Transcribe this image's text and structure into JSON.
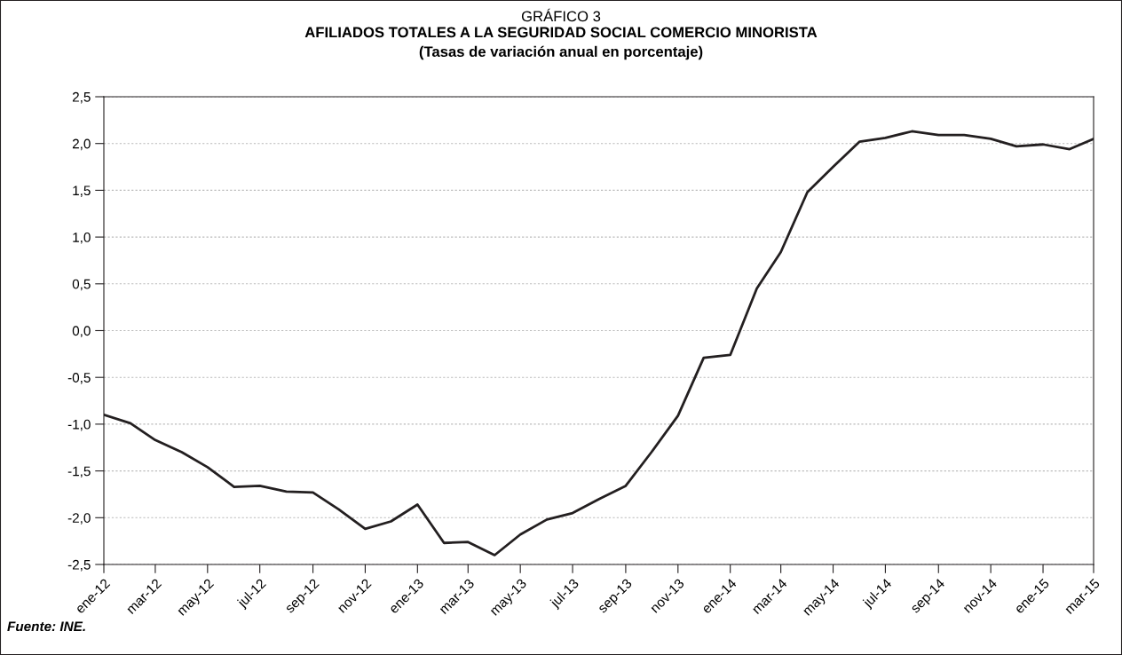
{
  "chart_data": {
    "type": "line",
    "title": "GRÁFICO 3",
    "subtitle": "AFILIADOS TOTALES A LA SEGURIDAD SOCIAL COMERCIO MINORISTA\n(Tasas de variación anual en porcentaje)",
    "annotations": [
      "Fuente: INE."
    ],
    "x": [
      "2012-01",
      "2012-02",
      "2012-03",
      "2012-04",
      "2012-05",
      "2012-06",
      "2012-07",
      "2012-08",
      "2012-09",
      "2012-10",
      "2012-11",
      "2012-12",
      "2013-01",
      "2013-02",
      "2013-03",
      "2013-04",
      "2013-05",
      "2013-06",
      "2013-07",
      "2013-08",
      "2013-09",
      "2013-10",
      "2013-11",
      "2013-12",
      "2014-01",
      "2014-02",
      "2014-03",
      "2014-04",
      "2014-05",
      "2014-06",
      "2014-07",
      "2014-08",
      "2014-09",
      "2014-10",
      "2014-11",
      "2014-12",
      "2015-01",
      "2015-02",
      "2015-03"
    ],
    "series": [
      {
        "color": "#231f20",
        "values": [
          -0.9,
          -0.99,
          -1.17,
          -1.3,
          -1.46,
          -1.67,
          -1.66,
          -1.72,
          -1.73,
          -1.91,
          -2.12,
          -2.04,
          -1.86,
          -2.27,
          -2.26,
          -2.4,
          -2.18,
          -2.02,
          -1.95,
          -1.8,
          -1.66,
          -1.3,
          -0.91,
          -0.29,
          -0.26,
          0.45,
          0.84,
          1.48,
          1.75,
          2.02,
          2.06,
          2.13,
          2.09,
          2.09,
          2.05,
          1.97,
          1.99,
          1.94,
          2.05
        ]
      }
    ],
    "xlim": [
      "2012-01",
      "2015-03"
    ],
    "xticks": [
      {
        "value": "2012-01",
        "label": "ene-12"
      },
      {
        "value": "2012-03",
        "label": "mar-12"
      },
      {
        "value": "2012-05",
        "label": "may-12"
      },
      {
        "value": "2012-07",
        "label": "jul-12"
      },
      {
        "value": "2012-09",
        "label": "sep-12"
      },
      {
        "value": "2012-11",
        "label": "nov-12"
      },
      {
        "value": "2013-01",
        "label": "ene-13"
      },
      {
        "value": "2013-03",
        "label": "mar-13"
      },
      {
        "value": "2013-05",
        "label": "may-13"
      },
      {
        "value": "2013-07",
        "label": "jul-13"
      },
      {
        "value": "2013-09",
        "label": "sep-13"
      },
      {
        "value": "2013-11",
        "label": "nov-13"
      },
      {
        "value": "2014-01",
        "label": "ene-14"
      },
      {
        "value": "2014-03",
        "label": "mar-14"
      },
      {
        "value": "2014-05",
        "label": "may-14"
      },
      {
        "value": "2014-07",
        "label": "jul-14"
      },
      {
        "value": "2014-09",
        "label": "sep-14"
      },
      {
        "value": "2014-11",
        "label": "nov-14"
      },
      {
        "value": "2015-01",
        "label": "ene-15"
      },
      {
        "value": "2015-03",
        "label": "mar-15"
      }
    ],
    "ylim": [
      -2.5,
      2.5
    ],
    "yticks": [
      {
        "value": -2.5,
        "label": "-2,5"
      },
      {
        "value": -2.0,
        "label": "-2,0"
      },
      {
        "value": -1.5,
        "label": "-1,5"
      },
      {
        "value": -1.0,
        "label": "-1,0"
      },
      {
        "value": -0.5,
        "label": "-0,5"
      },
      {
        "value": 0,
        "label": "0,0"
      },
      {
        "value": 0.5,
        "label": "0,5"
      },
      {
        "value": 1.0,
        "label": "1,0"
      },
      {
        "value": 1.5,
        "label": "1,5"
      },
      {
        "value": 2.0,
        "label": "2,0"
      },
      {
        "value": 2.5,
        "label": "2,5"
      }
    ],
    "grid": "y",
    "line_style": "solid"
  }
}
